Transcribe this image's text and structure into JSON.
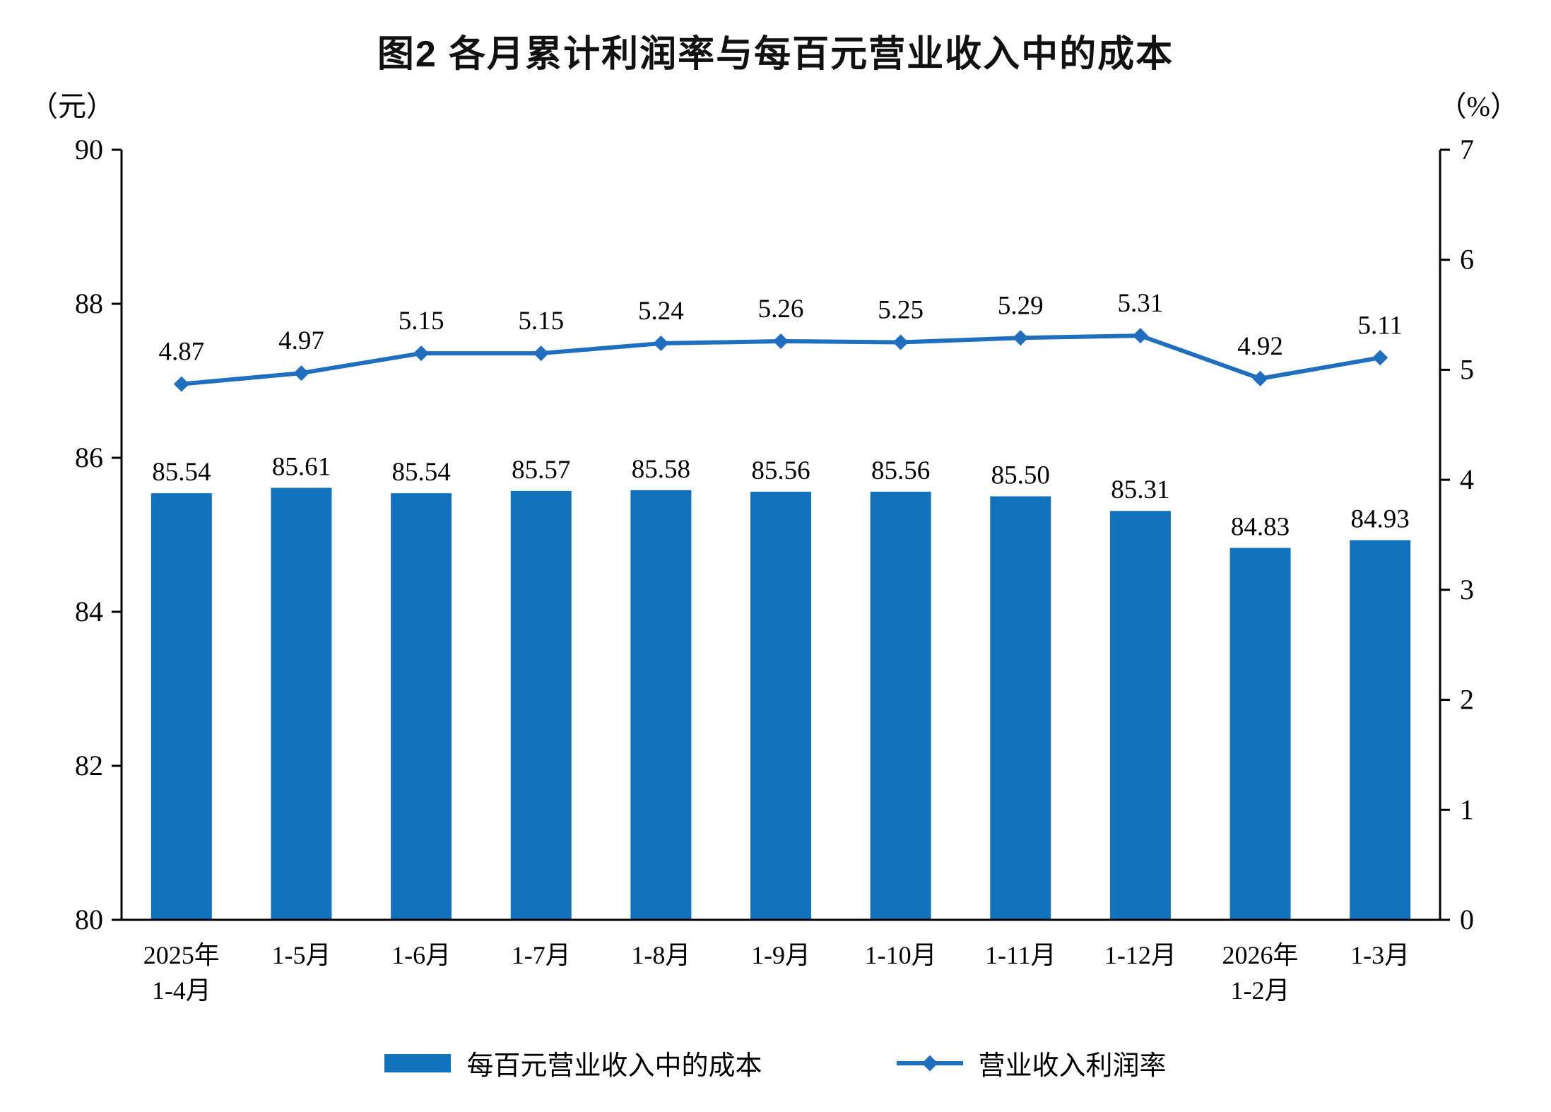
{
  "page": {
    "title": "图2  各月累计利润率与每百元营业收入中的成本"
  },
  "axes": {
    "left_unit": "（元）",
    "right_unit": "（%）"
  },
  "legend": {
    "bars": "每百元营业收入中的成本",
    "line": "营业收入利润率"
  },
  "colors": {
    "bar": "#1272BC",
    "line": "#1F6FBE",
    "axis": "#000000",
    "text": "#000000"
  },
  "chart_data": {
    "type": "bar",
    "subtype": "bar+line combo, dual axis",
    "title": "图2  各月累计利润率与每百元营业收入中的成本",
    "categories": [
      "2025年1-4月",
      "1-5月",
      "1-6月",
      "1-7月",
      "1-8月",
      "1-9月",
      "1-10月",
      "1-11月",
      "1-12月",
      "2026年1-2月",
      "1-3月"
    ],
    "category_lines": [
      [
        "2025年",
        "1-4月"
      ],
      [
        "1-5月"
      ],
      [
        "1-6月"
      ],
      [
        "1-7月"
      ],
      [
        "1-8月"
      ],
      [
        "1-9月"
      ],
      [
        "1-10月"
      ],
      [
        "1-11月"
      ],
      [
        "1-12月"
      ],
      [
        "2026年",
        "1-2月"
      ],
      [
        "1-3月"
      ]
    ],
    "series": [
      {
        "name": "每百元营业收入中的成本",
        "type": "bar",
        "axis": "left",
        "values": [
          85.54,
          85.61,
          85.54,
          85.57,
          85.58,
          85.56,
          85.56,
          85.5,
          85.31,
          84.83,
          84.93
        ]
      },
      {
        "name": "营业收入利润率",
        "type": "line",
        "axis": "right",
        "values": [
          4.87,
          4.97,
          5.15,
          5.15,
          5.24,
          5.26,
          5.25,
          5.29,
          5.31,
          4.92,
          5.11
        ]
      }
    ],
    "left_axis": {
      "unit": "（元）",
      "min": 80,
      "max": 90,
      "ticks": [
        90,
        88,
        86,
        84,
        82,
        80
      ]
    },
    "right_axis": {
      "unit": "（%）",
      "min": 0,
      "max": 7,
      "ticks": [
        7,
        6,
        5,
        4,
        3,
        2,
        1,
        0
      ]
    },
    "grid": false,
    "legend_position": "bottom",
    "data_labels": true
  }
}
